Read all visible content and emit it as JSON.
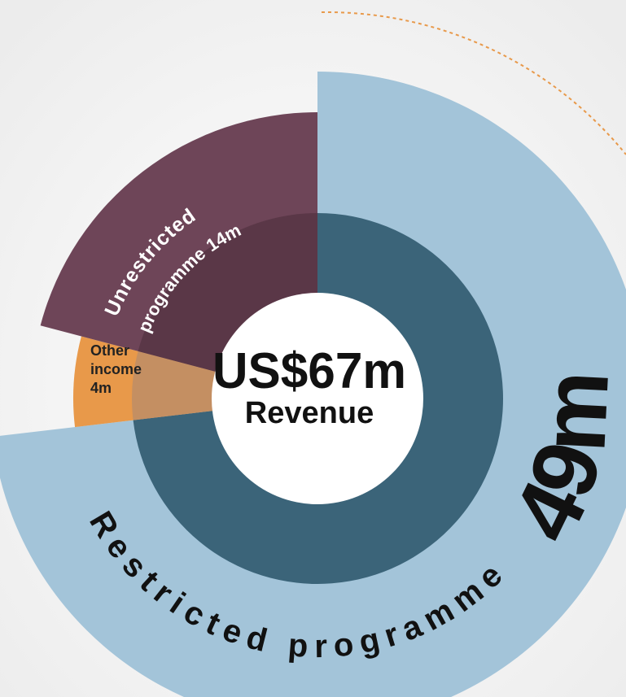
{
  "chart_data": {
    "type": "radial-pie",
    "categories": [
      [
        "Restricted programme"
      ],
      [
        "Other",
        "income"
      ],
      [
        "Unrestricted",
        "programme"
      ]
    ],
    "values": [
      49,
      4,
      14
    ],
    "value_labels": [
      "49m",
      "4m",
      "14m"
    ],
    "colors": [
      "#a3c4d9",
      "#e8994a",
      "#6e4558"
    ],
    "inner_colors": [
      "#3b6479",
      "#c48f62",
      "#5a3747"
    ],
    "center_label": "US$67m",
    "center_sublabel": "Revenue"
  }
}
